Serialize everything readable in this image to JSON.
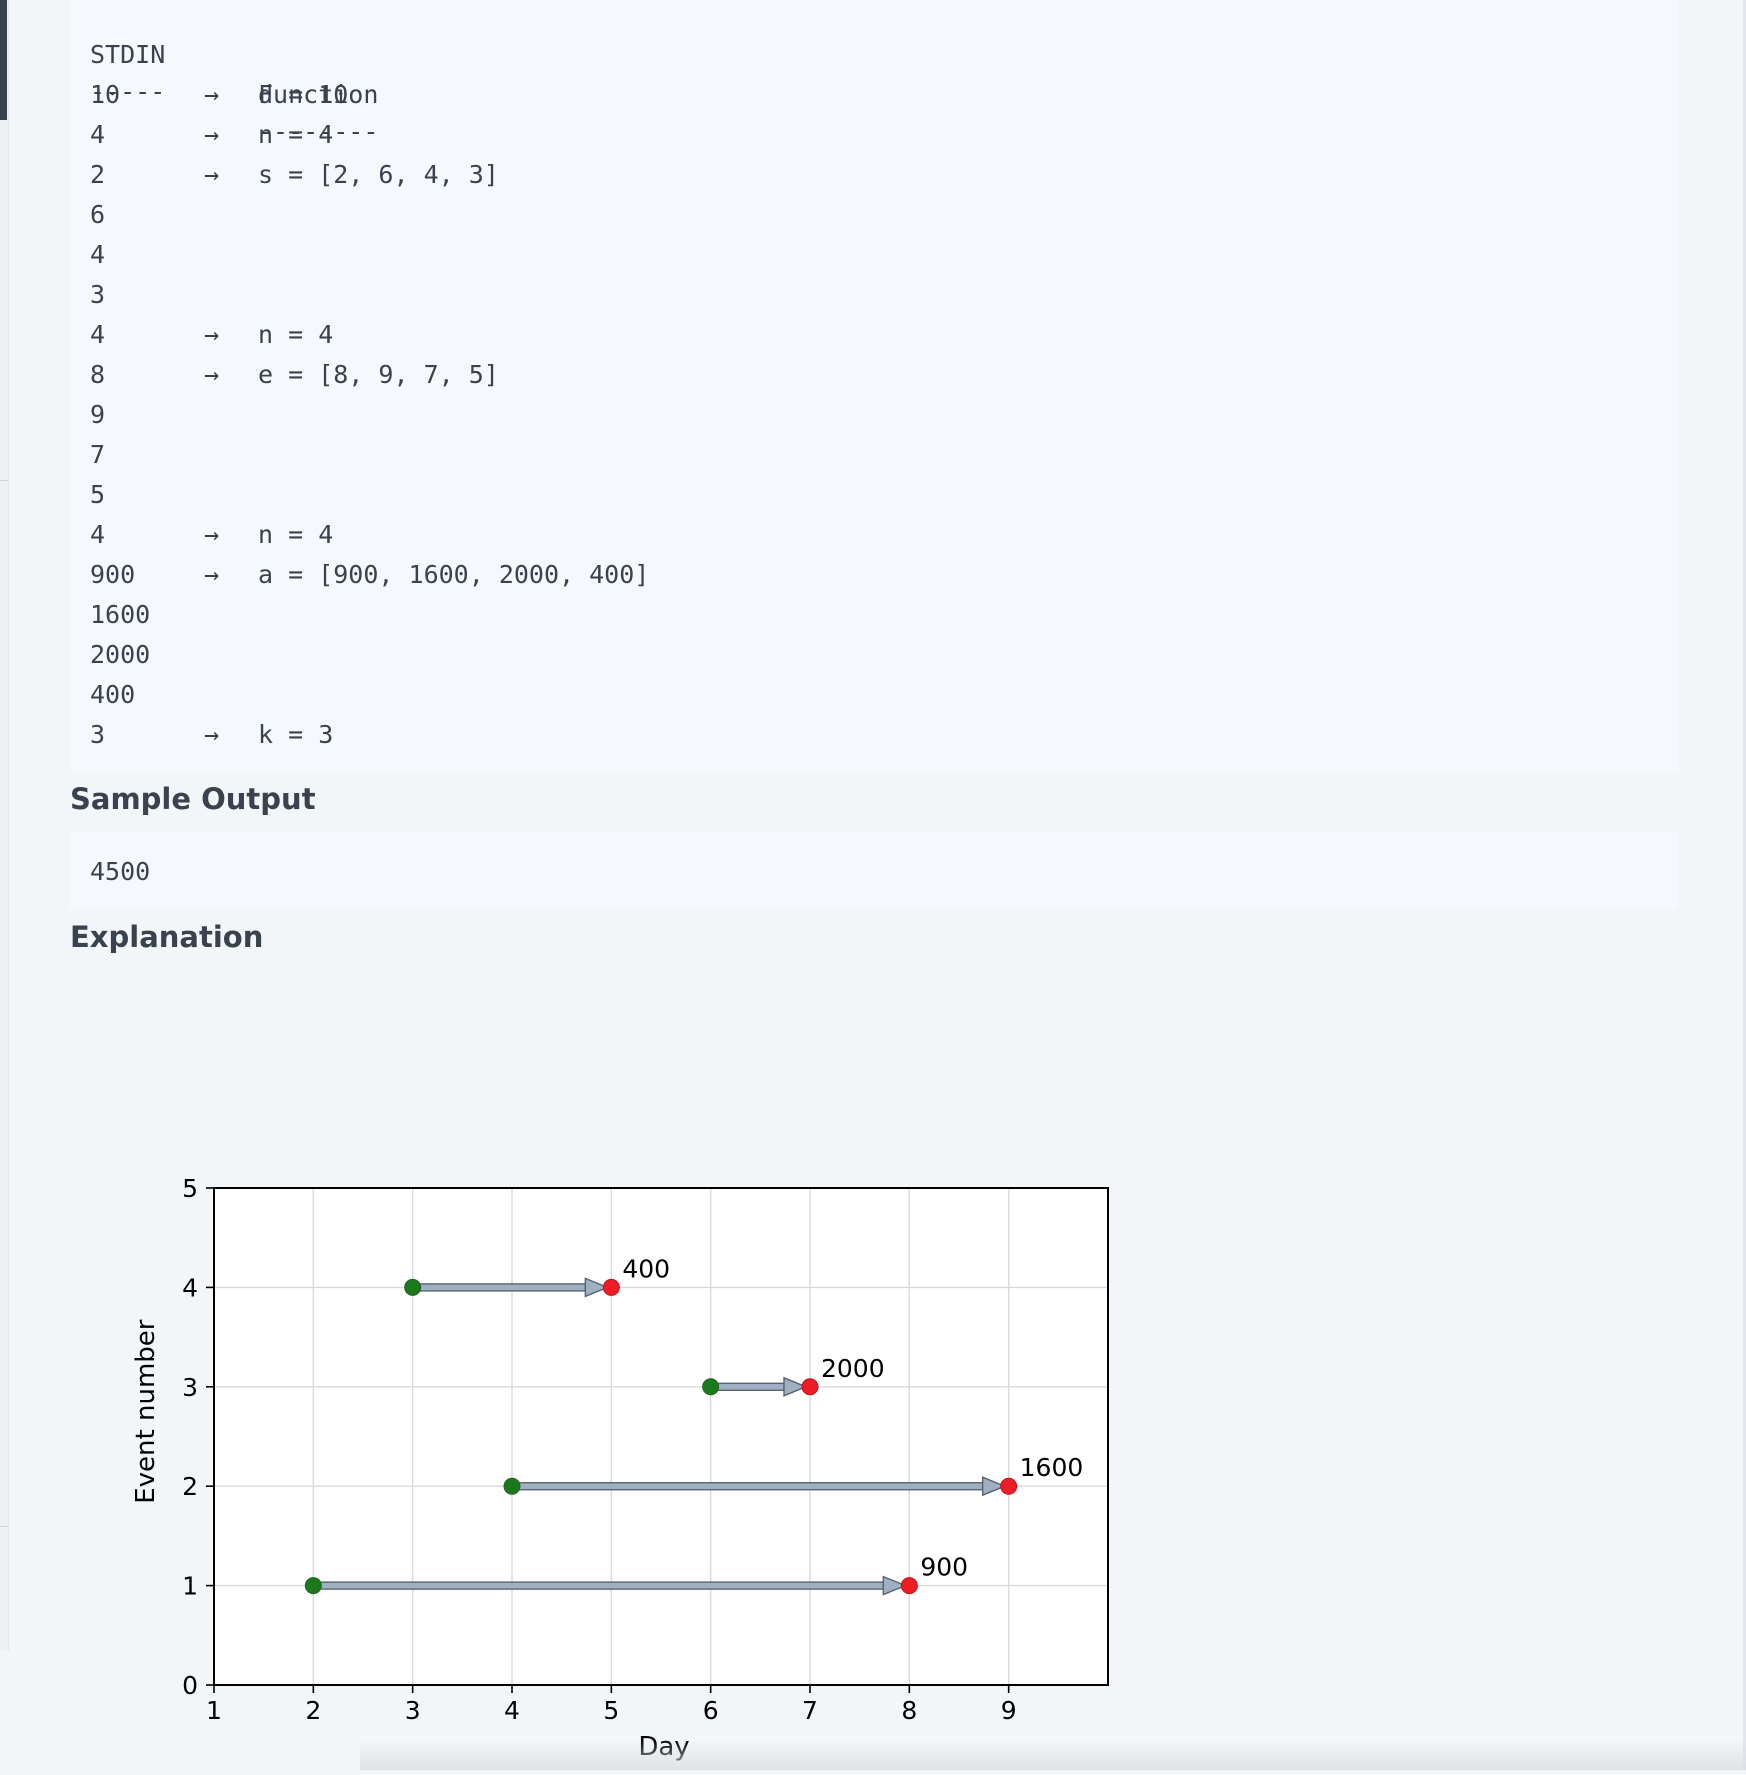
{
  "sample_input": {
    "header": {
      "stdin": "STDIN",
      "function": "Function"
    },
    "separator": {
      "stdin": "-----",
      "function": "--------"
    },
    "lines": [
      {
        "stdin": "10",
        "arrow": "→",
        "function": "d = 10"
      },
      {
        "stdin": "4",
        "arrow": "→",
        "function": "n = 4"
      },
      {
        "stdin": "2",
        "arrow": "→",
        "function": "s = [2, 6, 4, 3]"
      },
      {
        "stdin": "6",
        "arrow": "",
        "function": ""
      },
      {
        "stdin": "4",
        "arrow": "",
        "function": ""
      },
      {
        "stdin": "3",
        "arrow": "",
        "function": ""
      },
      {
        "stdin": "4",
        "arrow": "→",
        "function": "n = 4"
      },
      {
        "stdin": "8",
        "arrow": "→",
        "function": "e = [8, 9, 7, 5]"
      },
      {
        "stdin": "9",
        "arrow": "",
        "function": ""
      },
      {
        "stdin": "7",
        "arrow": "",
        "function": ""
      },
      {
        "stdin": "5",
        "arrow": "",
        "function": ""
      },
      {
        "stdin": "4",
        "arrow": "→",
        "function": "n = 4"
      },
      {
        "stdin": "900",
        "arrow": "→",
        "function": "a = [900, 1600, 2000, 400]"
      },
      {
        "stdin": "1600",
        "arrow": "",
        "function": ""
      },
      {
        "stdin": "2000",
        "arrow": "",
        "function": ""
      },
      {
        "stdin": "400",
        "arrow": "",
        "function": ""
      },
      {
        "stdin": "3",
        "arrow": "→",
        "function": "k = 3"
      }
    ]
  },
  "sample_output": {
    "heading": "Sample Output",
    "value": "4500"
  },
  "explanation": {
    "heading": "Explanation"
  },
  "chart_data": {
    "type": "scatter",
    "xlabel": "Day",
    "ylabel": "Event number",
    "xlim": [
      1,
      10
    ],
    "ylim": [
      0,
      5
    ],
    "xticks": [
      1,
      2,
      3,
      4,
      5,
      6,
      7,
      8,
      9
    ],
    "yticks": [
      0,
      1,
      2,
      3,
      4,
      5
    ],
    "grid": true,
    "events": [
      {
        "event": 1,
        "start": 2,
        "end": 8,
        "label": "900"
      },
      {
        "event": 2,
        "start": 4,
        "end": 9,
        "label": "1600"
      },
      {
        "event": 3,
        "start": 6,
        "end": 7,
        "label": "2000"
      },
      {
        "event": 4,
        "start": 3,
        "end": 5,
        "label": "400"
      }
    ],
    "colors": {
      "start": "#1a7a1a",
      "end": "#ee1c25",
      "arrow_fill": "#9fb0c2",
      "arrow_stroke": "#5a6470",
      "grid": "#d9d9d9"
    }
  }
}
